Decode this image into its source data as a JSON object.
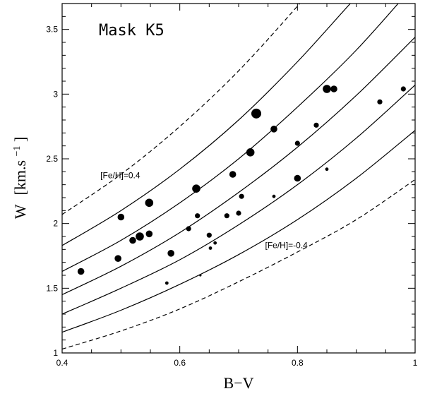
{
  "chart_data": {
    "type": "scatter",
    "title": "Mask K5",
    "xlabel": "B−V",
    "ylabel_main": "W",
    "ylabel_unit_prefix": "[km.s",
    "ylabel_unit_exp": "−1",
    "ylabel_unit_suffix": "]",
    "xlim": [
      0.4,
      1.0
    ],
    "ylim": [
      1.0,
      3.7
    ],
    "x_ticks": [
      0.4,
      0.6,
      0.8,
      1.0
    ],
    "x_tick_labels": [
      "0.4",
      "0.6",
      "0.8",
      "1"
    ],
    "y_ticks": [
      1.0,
      1.5,
      2.0,
      2.5,
      3.0,
      3.5
    ],
    "y_tick_labels": [
      "1",
      "1.5",
      "2",
      "2.5",
      "3",
      "3.5"
    ],
    "grid": false,
    "annotations": [
      {
        "text": "[Fe/H]=0.4",
        "x": 0.465,
        "y": 2.35
      },
      {
        "text": "[Fe/H]=-0.4",
        "x": 0.745,
        "y": 1.81
      }
    ],
    "curves": [
      {
        "style": "dashed",
        "points": [
          [
            0.4,
            2.07
          ],
          [
            0.5,
            2.38
          ],
          [
            0.6,
            2.75
          ],
          [
            0.7,
            3.18
          ],
          [
            0.8,
            3.68
          ],
          [
            0.82,
            3.8
          ]
        ]
      },
      {
        "style": "solid",
        "points": [
          [
            0.4,
            1.83
          ],
          [
            0.5,
            2.1
          ],
          [
            0.6,
            2.42
          ],
          [
            0.7,
            2.8
          ],
          [
            0.8,
            3.25
          ],
          [
            0.9,
            3.75
          ],
          [
            0.92,
            3.82
          ]
        ]
      },
      {
        "style": "solid",
        "points": [
          [
            0.4,
            1.63
          ],
          [
            0.5,
            1.87
          ],
          [
            0.6,
            2.16
          ],
          [
            0.7,
            2.5
          ],
          [
            0.8,
            2.9
          ],
          [
            0.9,
            3.34
          ],
          [
            1.0,
            3.85
          ]
        ]
      },
      {
        "style": "solid",
        "points": [
          [
            0.4,
            1.45
          ],
          [
            0.5,
            1.67
          ],
          [
            0.6,
            1.93
          ],
          [
            0.7,
            2.24
          ],
          [
            0.8,
            2.59
          ],
          [
            0.9,
            2.99
          ],
          [
            1.0,
            3.44
          ]
        ]
      },
      {
        "style": "solid",
        "points": [
          [
            0.4,
            1.3
          ],
          [
            0.5,
            1.5
          ],
          [
            0.6,
            1.72
          ],
          [
            0.7,
            1.99
          ],
          [
            0.8,
            2.3
          ],
          [
            0.9,
            2.66
          ],
          [
            1.0,
            3.07
          ]
        ]
      },
      {
        "style": "solid",
        "points": [
          [
            0.4,
            1.16
          ],
          [
            0.5,
            1.33
          ],
          [
            0.6,
            1.53
          ],
          [
            0.7,
            1.76
          ],
          [
            0.8,
            2.03
          ],
          [
            0.9,
            2.35
          ],
          [
            1.0,
            2.72
          ]
        ]
      },
      {
        "style": "dashed",
        "points": [
          [
            0.4,
            1.03
          ],
          [
            0.5,
            1.17
          ],
          [
            0.6,
            1.34
          ],
          [
            0.7,
            1.55
          ],
          [
            0.8,
            1.78
          ],
          [
            0.9,
            2.03
          ],
          [
            1.0,
            2.34
          ]
        ]
      }
    ],
    "points": [
      {
        "x": 0.432,
        "y": 1.63,
        "size": 3
      },
      {
        "x": 0.495,
        "y": 1.73,
        "size": 3
      },
      {
        "x": 0.5,
        "y": 2.05,
        "size": 3
      },
      {
        "x": 0.52,
        "y": 1.87,
        "size": 3
      },
      {
        "x": 0.532,
        "y": 1.9,
        "size": 4
      },
      {
        "x": 0.548,
        "y": 1.92,
        "size": 3
      },
      {
        "x": 0.548,
        "y": 2.16,
        "size": 4
      },
      {
        "x": 0.578,
        "y": 1.54,
        "size": 1
      },
      {
        "x": 0.585,
        "y": 1.77,
        "size": 3
      },
      {
        "x": 0.615,
        "y": 1.96,
        "size": 2
      },
      {
        "x": 0.628,
        "y": 2.27,
        "size": 4
      },
      {
        "x": 0.63,
        "y": 2.06,
        "size": 2
      },
      {
        "x": 0.635,
        "y": 1.6,
        "size": 0
      },
      {
        "x": 0.65,
        "y": 1.91,
        "size": 2
      },
      {
        "x": 0.652,
        "y": 1.81,
        "size": 1
      },
      {
        "x": 0.66,
        "y": 1.85,
        "size": 1
      },
      {
        "x": 0.68,
        "y": 2.06,
        "size": 2
      },
      {
        "x": 0.69,
        "y": 2.38,
        "size": 3
      },
      {
        "x": 0.7,
        "y": 2.08,
        "size": 2
      },
      {
        "x": 0.705,
        "y": 2.21,
        "size": 2
      },
      {
        "x": 0.72,
        "y": 2.55,
        "size": 4
      },
      {
        "x": 0.73,
        "y": 2.85,
        "size": 5
      },
      {
        "x": 0.76,
        "y": 2.73,
        "size": 3
      },
      {
        "x": 0.76,
        "y": 2.21,
        "size": 1
      },
      {
        "x": 0.8,
        "y": 2.62,
        "size": 2
      },
      {
        "x": 0.8,
        "y": 2.35,
        "size": 3
      },
      {
        "x": 0.832,
        "y": 2.76,
        "size": 2
      },
      {
        "x": 0.85,
        "y": 3.04,
        "size": 4
      },
      {
        "x": 0.85,
        "y": 2.42,
        "size": 1
      },
      {
        "x": 0.862,
        "y": 3.04,
        "size": 3
      },
      {
        "x": 0.94,
        "y": 2.94,
        "size": 2
      },
      {
        "x": 0.98,
        "y": 3.04,
        "size": 2
      }
    ]
  }
}
